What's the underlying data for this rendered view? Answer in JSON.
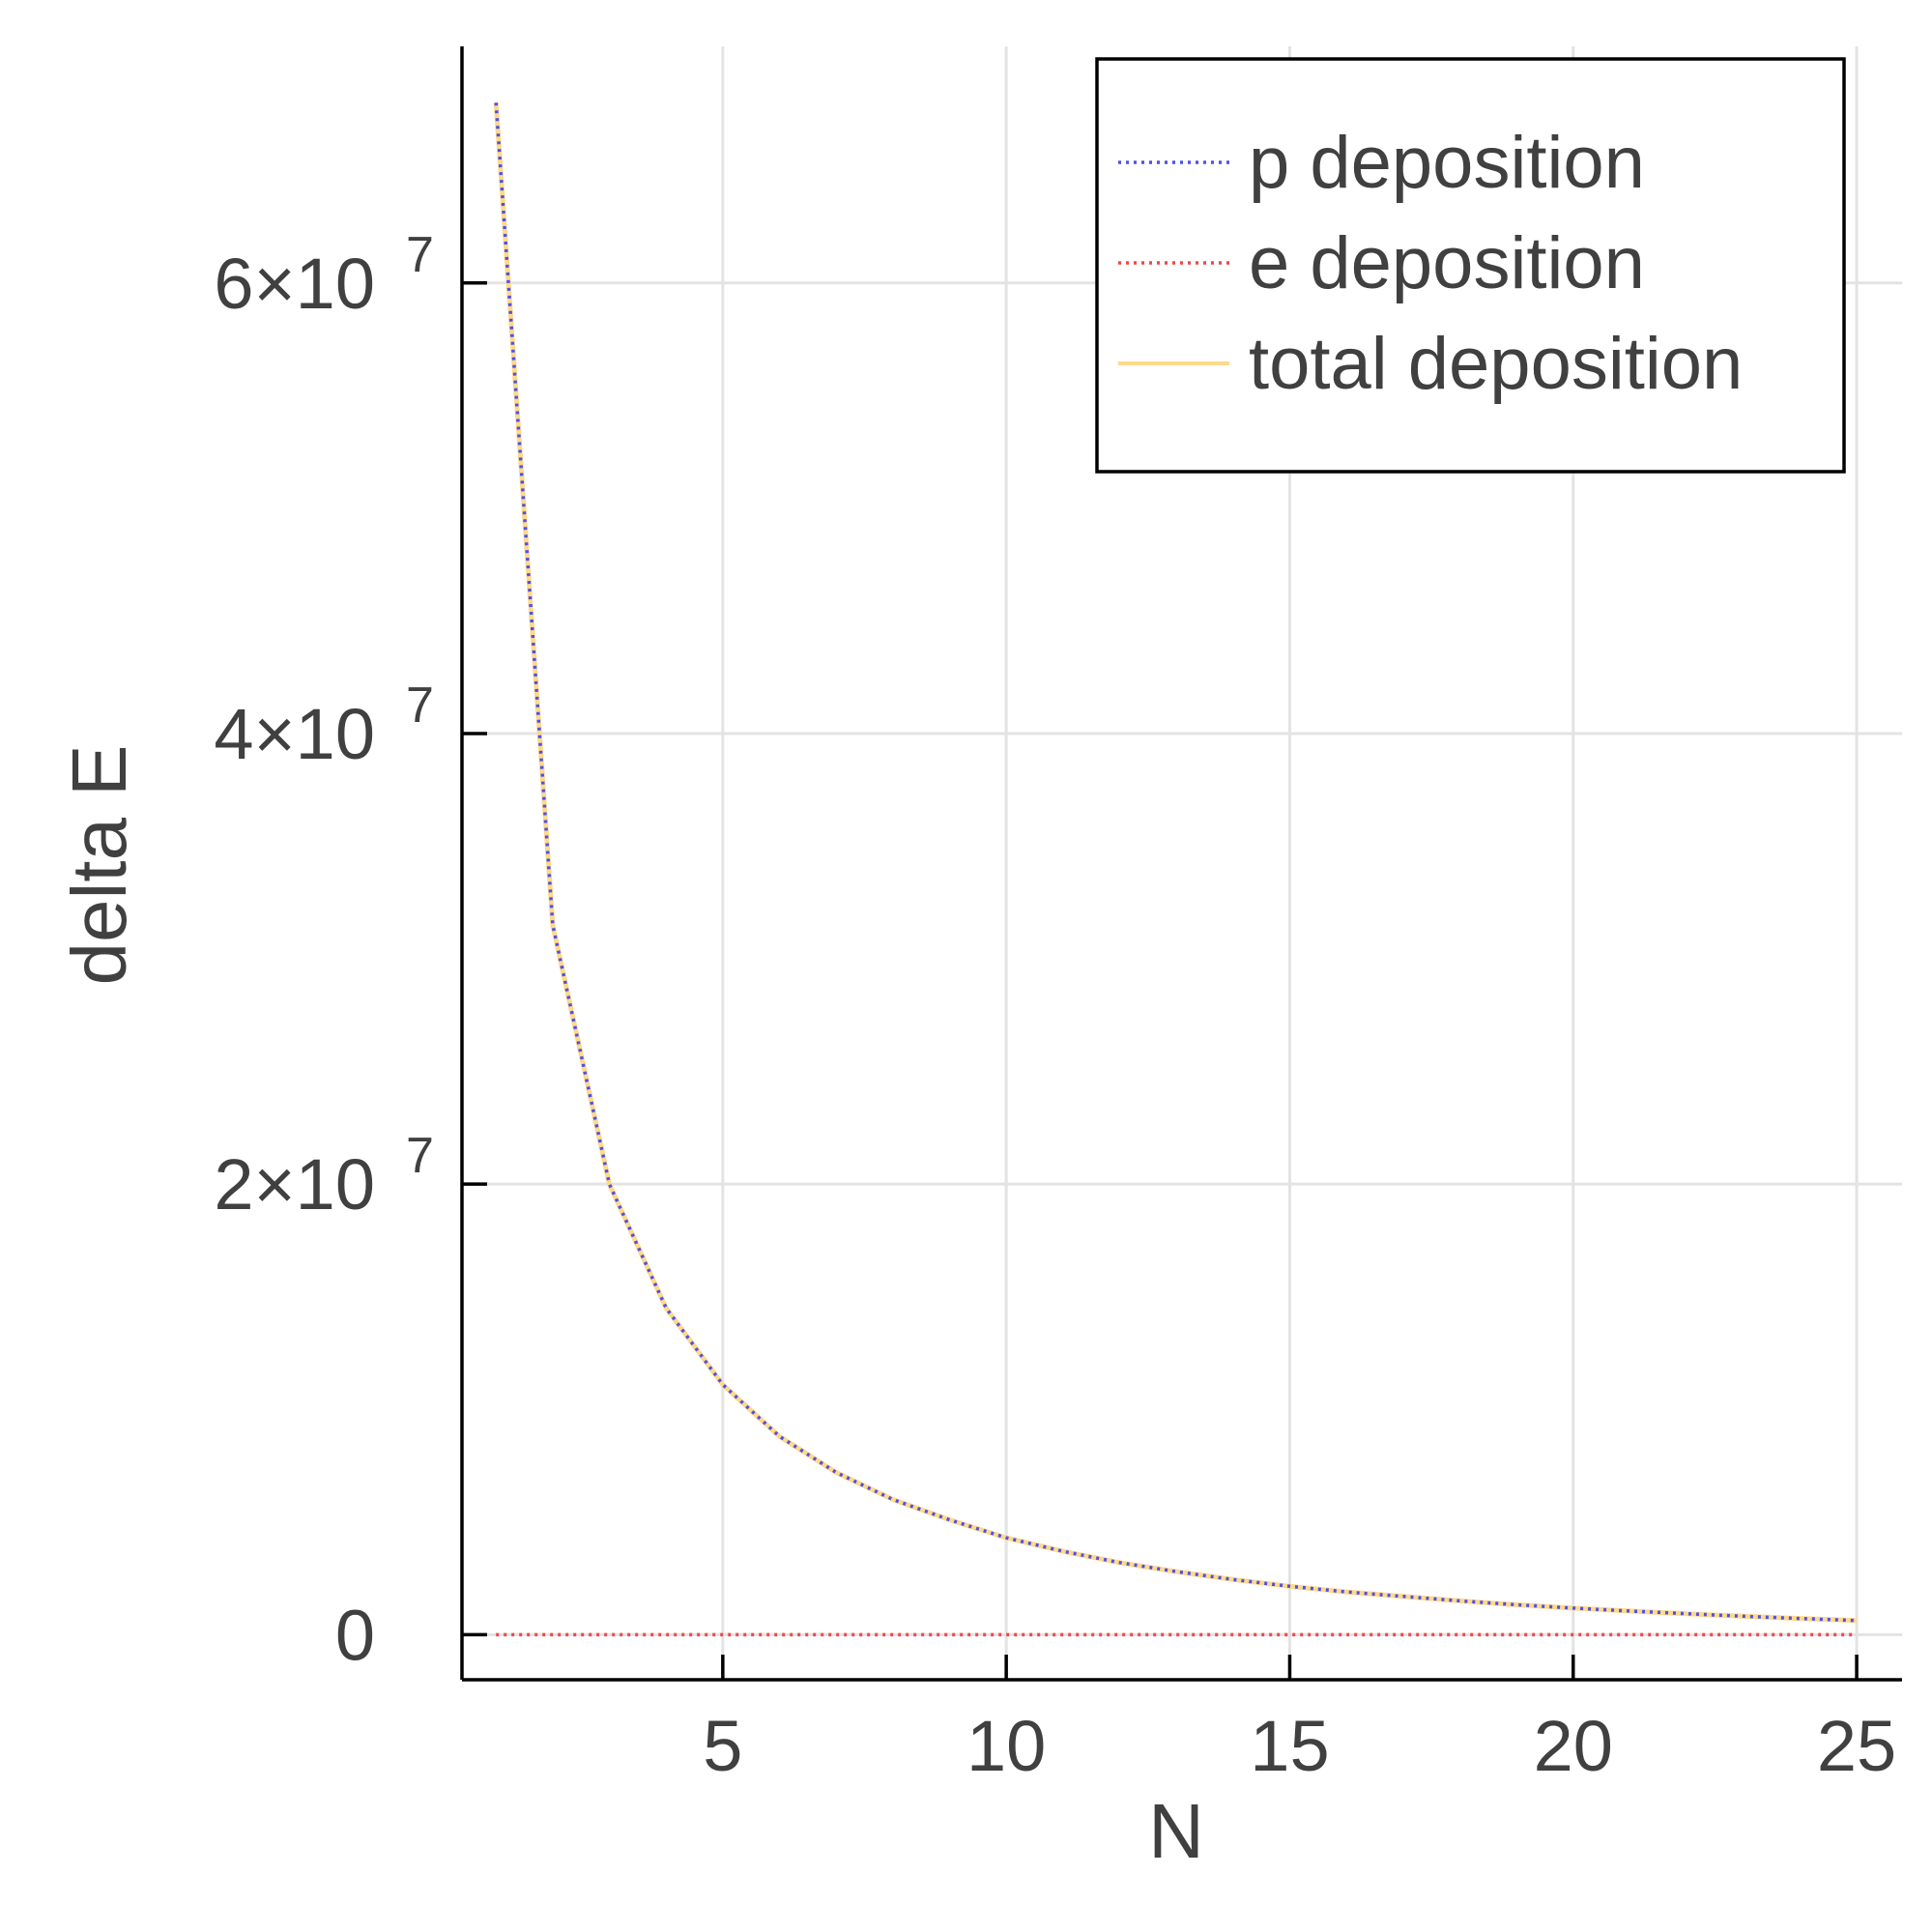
{
  "chart_data": {
    "type": "line",
    "title": "",
    "xlabel": "N",
    "ylabel": "delta E",
    "xlim": [
      0.4,
      25.8
    ],
    "ylim": [
      -2000000,
      70500000
    ],
    "grid": true,
    "legend_position": "top-right",
    "x_ticks": [
      {
        "value": 5,
        "label": "5"
      },
      {
        "value": 10,
        "label": "10"
      },
      {
        "value": 15,
        "label": "15"
      },
      {
        "value": 20,
        "label": "20"
      },
      {
        "value": 25,
        "label": "25"
      }
    ],
    "y_ticks": [
      {
        "value": 0,
        "label": "0",
        "exponent": ""
      },
      {
        "value": 20000000,
        "label": "2×10",
        "exponent": "7"
      },
      {
        "value": 40000000,
        "label": "4×10",
        "exponent": "7"
      },
      {
        "value": 60000000,
        "label": "6×10",
        "exponent": "7"
      }
    ],
    "x": [
      1,
      2,
      3,
      4,
      5,
      6,
      7,
      8,
      9,
      10,
      11,
      12,
      13,
      14,
      15,
      16,
      17,
      18,
      19,
      20,
      21,
      22,
      23,
      24,
      25
    ],
    "series": [
      {
        "name": "p deposition",
        "color": "#5050e8",
        "style": "dotted",
        "values": [
          68000000,
          31500000,
          20000000,
          14500000,
          11100000,
          8800000,
          7200000,
          6000000,
          5100000,
          4300000,
          3700000,
          3200000,
          2800000,
          2450000,
          2150000,
          1900000,
          1700000,
          1500000,
          1330000,
          1180000,
          1050000,
          930000,
          820000,
          720000,
          630000
        ]
      },
      {
        "name": "e deposition",
        "color": "#f04848",
        "style": "dotted",
        "values": [
          0,
          0,
          0,
          0,
          0,
          0,
          0,
          0,
          0,
          0,
          0,
          0,
          0,
          0,
          0,
          0,
          0,
          0,
          0,
          0,
          0,
          0,
          0,
          0,
          0
        ]
      },
      {
        "name": "total deposition",
        "color": "#ffd98a",
        "style": "solid",
        "values": [
          68000000,
          31500000,
          20000000,
          14500000,
          11100000,
          8800000,
          7200000,
          6000000,
          5100000,
          4300000,
          3700000,
          3200000,
          2800000,
          2450000,
          2150000,
          1900000,
          1700000,
          1500000,
          1330000,
          1180000,
          1050000,
          930000,
          820000,
          720000,
          630000
        ]
      }
    ]
  }
}
